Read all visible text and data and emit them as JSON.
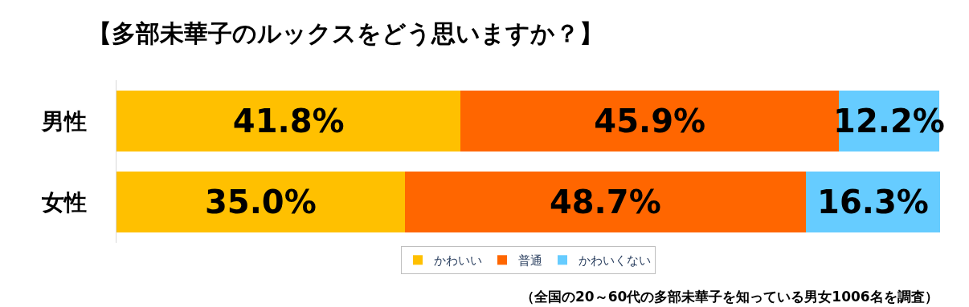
{
  "chart_data": {
    "type": "bar",
    "orientation": "horizontal",
    "stacked": true,
    "title": "【多部未華子のルックスをどう思いますか？】",
    "categories": [
      "男性",
      "女性"
    ],
    "series": [
      {
        "name": "かわいい",
        "color": "#ffc000",
        "values": [
          41.8,
          35.0
        ],
        "value_labels": [
          "41.8%",
          "35.0%"
        ]
      },
      {
        "name": "普通",
        "color": "#ff6600",
        "values": [
          45.9,
          48.7
        ],
        "value_labels": [
          "45.9%",
          "48.7%"
        ]
      },
      {
        "name": "かわいくない",
        "color": "#66ccff",
        "values": [
          12.2,
          16.3
        ],
        "value_labels": [
          "12.2%",
          "16.3%"
        ]
      }
    ],
    "tick_labels": "y",
    "legend": "bottom",
    "annotations": [
      "（全国の20～60代の多部未華子を知っている男女1006名を調査）"
    ]
  }
}
